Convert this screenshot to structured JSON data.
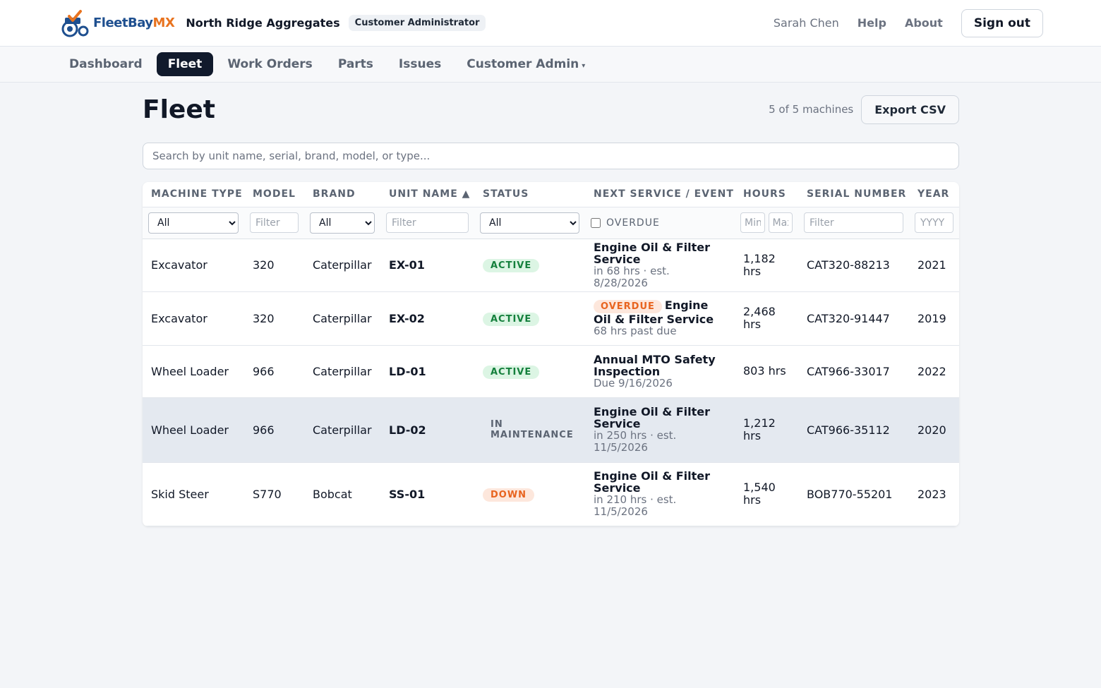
{
  "header": {
    "logo_fleetbay": "FleetBay",
    "logo_mx": "MX",
    "org_name": "North Ridge Aggregates",
    "role": "Customer Administrator",
    "user_name": "Sarah Chen",
    "help": "Help",
    "about": "About",
    "sign_out": "Sign out"
  },
  "nav": {
    "dashboard": "Dashboard",
    "fleet": "Fleet",
    "work_orders": "Work Orders",
    "parts": "Parts",
    "issues": "Issues",
    "customer_admin": "Customer Admin",
    "caret": "▾"
  },
  "page": {
    "title": "Fleet",
    "count": "5 of 5 machines",
    "export": "Export CSV",
    "search_placeholder": "Search by unit name, serial, brand, model, or type..."
  },
  "columns": {
    "machine_type": "MACHINE TYPE",
    "model": "MODEL",
    "brand": "BRAND",
    "unit_name": "UNIT NAME ▲",
    "status": "STATUS",
    "next_service": "NEXT SERVICE / EVENT",
    "hours": "HOURS",
    "serial": "SERIAL NUMBER",
    "year": "YEAR"
  },
  "filters": {
    "all": "All",
    "filter_placeholder": "Filter",
    "overdue": "OVERDUE",
    "min_placeholder": "Min",
    "max_placeholder": "Max",
    "year_placeholder": "YYYY"
  },
  "rows": [
    {
      "type": "Excavator",
      "model": "320",
      "brand": "Caterpillar",
      "unit": "EX-01",
      "status": "ACTIVE",
      "svc_overdue": "",
      "svc_title": "Engine Oil & Filter Service",
      "svc_sub": "in 68 hrs · est. 8/28/2026",
      "hours": "1,182 hrs",
      "serial": "CAT320-88213",
      "year": "2021"
    },
    {
      "type": "Excavator",
      "model": "320",
      "brand": "Caterpillar",
      "unit": "EX-02",
      "status": "ACTIVE",
      "svc_overdue": "OVERDUE",
      "svc_title": "Engine Oil & Filter Service",
      "svc_sub": "68 hrs past due",
      "hours": "2,468 hrs",
      "serial": "CAT320-91447",
      "year": "2019"
    },
    {
      "type": "Wheel Loader",
      "model": "966",
      "brand": "Caterpillar",
      "unit": "LD-01",
      "status": "ACTIVE",
      "svc_overdue": "",
      "svc_title": "Annual MTO Safety Inspection",
      "svc_sub": "Due 9/16/2026",
      "hours": "803 hrs",
      "serial": "CAT966-33017",
      "year": "2022"
    },
    {
      "type": "Wheel Loader",
      "model": "966",
      "brand": "Caterpillar",
      "unit": "LD-02",
      "status": "IN MAINTENANCE",
      "svc_overdue": "",
      "svc_title": "Engine Oil & Filter Service",
      "svc_sub": "in 250 hrs · est. 11/5/2026",
      "hours": "1,212 hrs",
      "serial": "CAT966-35112",
      "year": "2020"
    },
    {
      "type": "Skid Steer",
      "model": "S770",
      "brand": "Bobcat",
      "unit": "SS-01",
      "status": "DOWN",
      "svc_overdue": "",
      "svc_title": "Engine Oil & Filter Service",
      "svc_sub": "in 210 hrs · est. 11/5/2026",
      "hours": "1,540 hrs",
      "serial": "BOB770-55201",
      "year": "2023"
    }
  ],
  "colors": {
    "nav_active": "#111a2c",
    "brand_blue": "#1e4f8f",
    "brand_orange": "#e8731f",
    "status_active": "#15803d",
    "status_down": "#e8641f"
  }
}
